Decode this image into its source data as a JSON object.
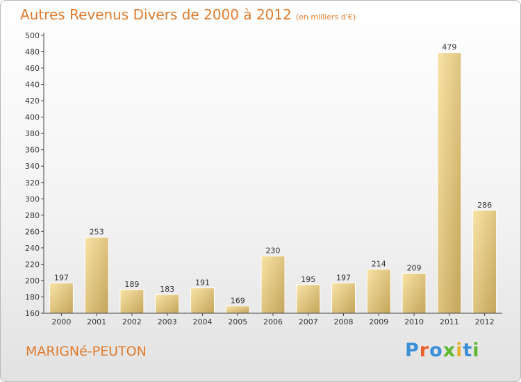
{
  "title": "Autres Revenus Divers de 2000 à 2012",
  "subtitle": "(en milliers d'€)",
  "place_name": "MARIGNé-PEUTON",
  "logo": {
    "letters": [
      "P",
      "r",
      "o",
      "x",
      "i",
      "t",
      "i"
    ],
    "colors": [
      "#3a8fd6",
      "#e8602c",
      "#3a8fd6",
      "#5cb82e",
      "#e8b02c",
      "#3a8fd6",
      "#5cb82e"
    ]
  },
  "colors": {
    "accent": "#e07a2c",
    "bar_light": "#f5dc9a",
    "bar_dark": "#c9ac62"
  },
  "chart_data": {
    "type": "bar",
    "title": "Autres Revenus Divers de 2000 à 2012",
    "subtitle": "(en milliers d'€)",
    "xlabel": "",
    "ylabel": "",
    "categories": [
      "2000",
      "2001",
      "2002",
      "2003",
      "2004",
      "2005",
      "2006",
      "2007",
      "2008",
      "2009",
      "2010",
      "2011",
      "2012"
    ],
    "values": [
      197,
      253,
      189,
      183,
      191,
      169,
      230,
      195,
      197,
      214,
      209,
      479,
      286
    ],
    "ylim": [
      160,
      500
    ],
    "yticks": [
      160,
      180,
      200,
      220,
      240,
      260,
      280,
      300,
      320,
      340,
      360,
      380,
      400,
      420,
      440,
      460,
      480,
      500
    ],
    "grid": false,
    "legend": "none"
  }
}
